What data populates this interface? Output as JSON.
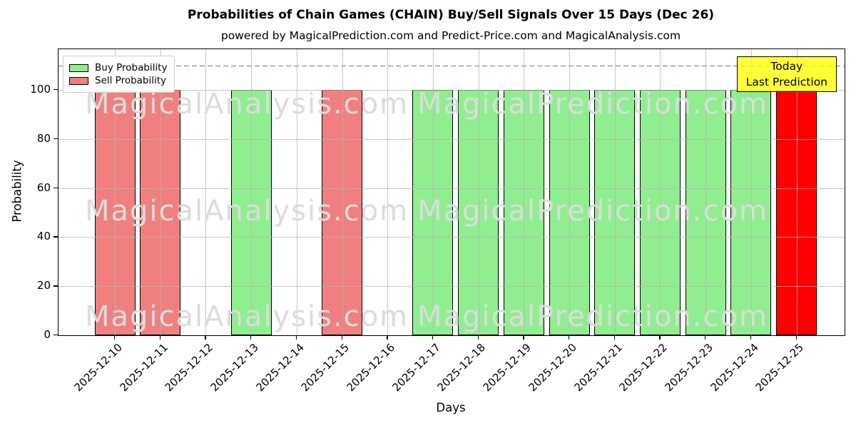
{
  "title": "Probabilities of Chain Games (CHAIN) Buy/Sell Signals Over 15 Days (Dec 26)",
  "subtitle": "powered by MagicalPrediction.com and Predict-Price.com and MagicalAnalysis.com",
  "chart_data": {
    "type": "bar",
    "title": "Probabilities of Chain Games (CHAIN) Buy/Sell Signals Over 15 Days (Dec 26)",
    "subtitle": "powered by MagicalPrediction.com and Predict-Price.com and MagicalAnalysis.com",
    "xlabel": "Days",
    "ylabel": "Probability",
    "ylim": [
      0,
      116.6
    ],
    "yticks": [
      0,
      20,
      40,
      60,
      80,
      100
    ],
    "grid": true,
    "dashed_guideline_y": 110,
    "categories": [
      "2025-12-10",
      "2025-12-11",
      "2025-12-12",
      "2025-12-13",
      "2025-12-14",
      "2025-12-15",
      "2025-12-16",
      "2025-12-17",
      "2025-12-18",
      "2025-12-19",
      "2025-12-20",
      "2025-12-21",
      "2025-12-22",
      "2025-12-23",
      "2025-12-24",
      "2025-12-25"
    ],
    "bars": [
      {
        "date": "2025-12-10",
        "value": 100,
        "signal": "sell"
      },
      {
        "date": "2025-12-11",
        "value": 100,
        "signal": "sell"
      },
      {
        "date": "2025-12-12",
        "value": 0,
        "signal": "none"
      },
      {
        "date": "2025-12-13",
        "value": 100,
        "signal": "buy"
      },
      {
        "date": "2025-12-14",
        "value": 0,
        "signal": "none"
      },
      {
        "date": "2025-12-15",
        "value": 100,
        "signal": "sell"
      },
      {
        "date": "2025-12-16",
        "value": 0,
        "signal": "none"
      },
      {
        "date": "2025-12-17",
        "value": 100,
        "signal": "buy"
      },
      {
        "date": "2025-12-18",
        "value": 100,
        "signal": "buy"
      },
      {
        "date": "2025-12-19",
        "value": 100,
        "signal": "buy"
      },
      {
        "date": "2025-12-20",
        "value": 100,
        "signal": "buy"
      },
      {
        "date": "2025-12-21",
        "value": 100,
        "signal": "buy"
      },
      {
        "date": "2025-12-22",
        "value": 100,
        "signal": "buy"
      },
      {
        "date": "2025-12-23",
        "value": 100,
        "signal": "buy"
      },
      {
        "date": "2025-12-24",
        "value": 100,
        "signal": "buy"
      },
      {
        "date": "2025-12-25",
        "value": 100,
        "signal": "today"
      }
    ],
    "series": [
      {
        "name": "Buy Probability",
        "color": "#90ee90",
        "values": [
          0,
          0,
          0,
          100,
          0,
          0,
          0,
          100,
          100,
          100,
          100,
          100,
          100,
          100,
          100,
          0
        ]
      },
      {
        "name": "Sell Probability",
        "color": "#f08080",
        "values": [
          100,
          100,
          0,
          0,
          0,
          100,
          0,
          0,
          0,
          0,
          0,
          0,
          0,
          0,
          0,
          0
        ]
      },
      {
        "name": "Today Last Prediction",
        "color": "#ff0000",
        "values": [
          0,
          0,
          0,
          0,
          0,
          0,
          0,
          0,
          0,
          0,
          0,
          0,
          0,
          0,
          0,
          100
        ]
      }
    ],
    "legend": {
      "position": "upper left",
      "entries": [
        {
          "label": "Buy Probability",
          "color": "#90ee90"
        },
        {
          "label": "Sell Probability",
          "color": "#f08080"
        }
      ]
    },
    "annotation": {
      "line1": "Today",
      "line2": "Last Prediction",
      "bg_color": "#ffff00"
    },
    "watermarks": {
      "left_text": "MagicalAnalysis.com",
      "right_text": "MagicalPrediction.com"
    }
  },
  "colors": {
    "buy": "#90ee90",
    "sell": "#f08080",
    "today": "#ff0000",
    "bar_edge": "#000000",
    "grid": "#b3b3b3",
    "dashed": "#7f7f7f",
    "watermark": "#dcdcdc",
    "annotation_border": "#000000",
    "legend_border": "#cccccc"
  }
}
